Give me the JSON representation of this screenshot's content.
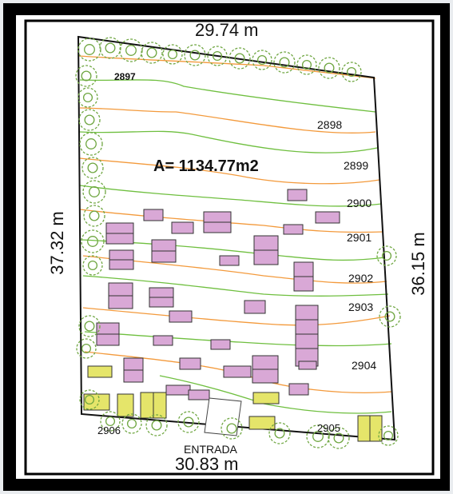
{
  "plan": {
    "dimensions": {
      "top": "29.74 m",
      "left": "37.32 m",
      "right": "36.15 m",
      "bottom": "30.83 m"
    },
    "area_label": "A= 1134.77m2",
    "entrance_label": "ENTRADA",
    "contours": [
      "2897",
      "2898",
      "2899",
      "2900",
      "2901",
      "2902",
      "2903",
      "2904",
      "2905",
      "2906"
    ],
    "colors": {
      "outer_frame": "#000000",
      "inner_frame_border": "#000000",
      "boundary": "#111111",
      "contour_green": "#6fbf3f",
      "contour_orange": "#f39a3c",
      "tree_stroke": "#6fa641",
      "building_fill": "#d9a8d6",
      "building_stroke": "#333333",
      "parking_fill": "#e5e56a",
      "entrance_fill": "#ffffff"
    }
  }
}
